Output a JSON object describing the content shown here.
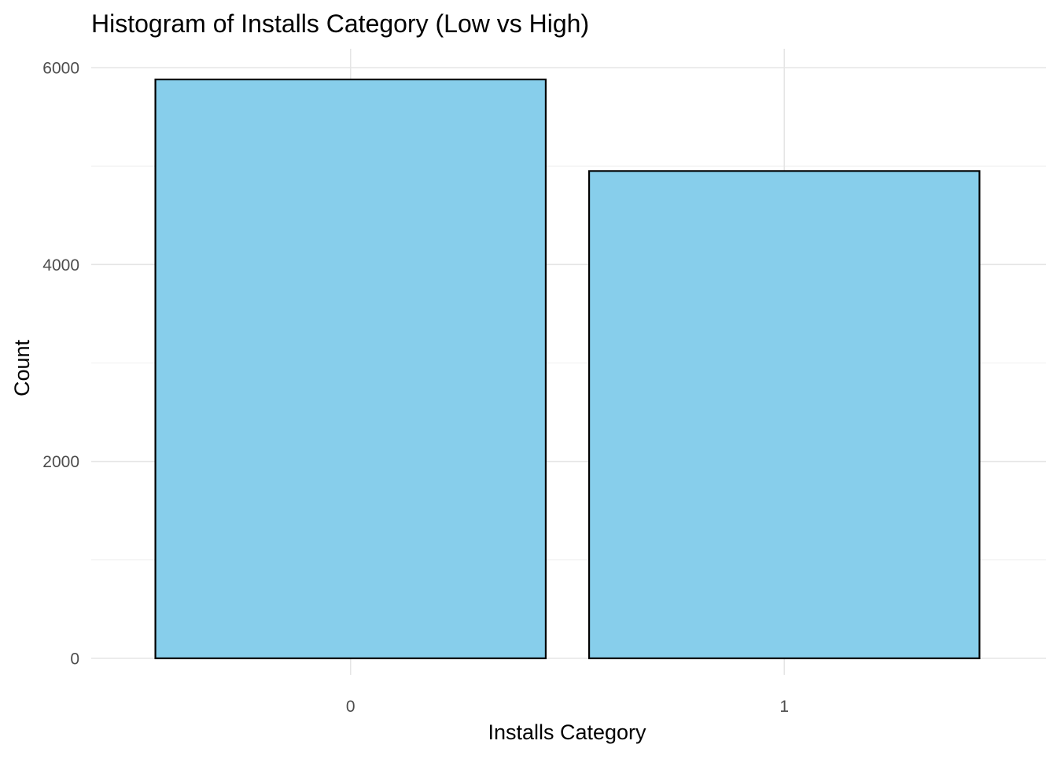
{
  "chart_data": {
    "type": "bar",
    "title": "Histogram of Installs Category (Low vs High)",
    "xlabel": "Installs Category",
    "ylabel": "Count",
    "categories": [
      "0",
      "1"
    ],
    "values": [
      5880,
      4950
    ],
    "ylim": [
      0,
      6000
    ],
    "yticks": [
      0,
      2000,
      4000,
      6000
    ],
    "ytick_labels": [
      "0",
      "2000",
      "4000",
      "6000"
    ],
    "grid": true,
    "legend": "none",
    "bar_fill": "#87ceeb",
    "bar_outline": "#000000"
  }
}
